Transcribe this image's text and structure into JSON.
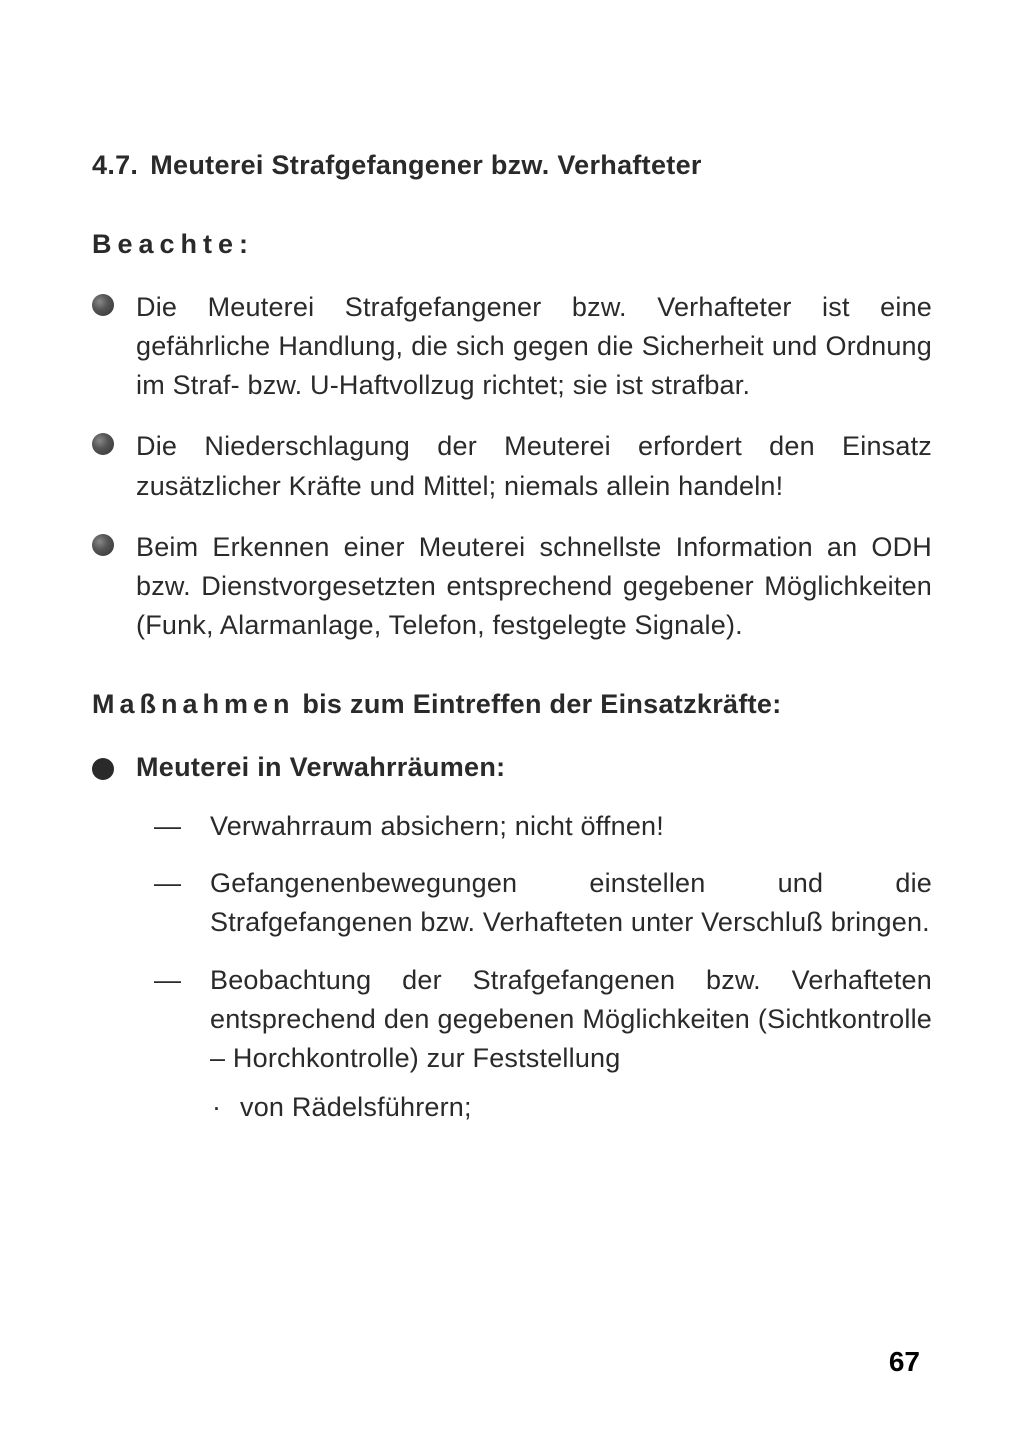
{
  "section": {
    "number": "4.7.",
    "title": "Meuterei Strafgefangener bzw. Verhafteter"
  },
  "beachte": {
    "label": "Beachte:",
    "items": [
      "Die Meuterei Strafgefangener bzw. Verhafteter ist eine gefährliche Handlung, die sich gegen die Sicherheit und Ordnung im Straf- bzw. U-Haftvollzug richtet; sie ist strafbar.",
      "Die Niederschlagung der Meuterei erfordert den Einsatz zusätzlicher Kräfte und Mittel; niemals allein handeln!",
      "Beim Erkennen einer Meuterei schnellste Information an ODH bzw. Dienstvorgesetzten entsprechend gegebener Möglichkeiten (Funk, Alarmanlage, Telefon, festgelegte Signale)."
    ]
  },
  "massnahmen": {
    "spaced_part": "Maßnahmen",
    "rest": " bis zum Eintreffen der Einsatzkräfte:",
    "subheading": "Meuterei in Verwahrräumen:",
    "dash_items": [
      "Verwahrraum absichern; nicht öffnen!",
      "Gefangenenbewegungen einstellen und die Strafgefangenen bzw. Verhafteten unter Verschluß bringen.",
      "Beobachtung der Strafgefangenen bzw. Verhafteten entsprechend den gegebenen Möglichkeiten (Sichtkontrolle – Horchkontrolle) zur Feststellung"
    ],
    "dot_items": [
      "von Rädelsführern;"
    ]
  },
  "page_number": "67",
  "markers": {
    "dash": "—",
    "dot": "·"
  }
}
